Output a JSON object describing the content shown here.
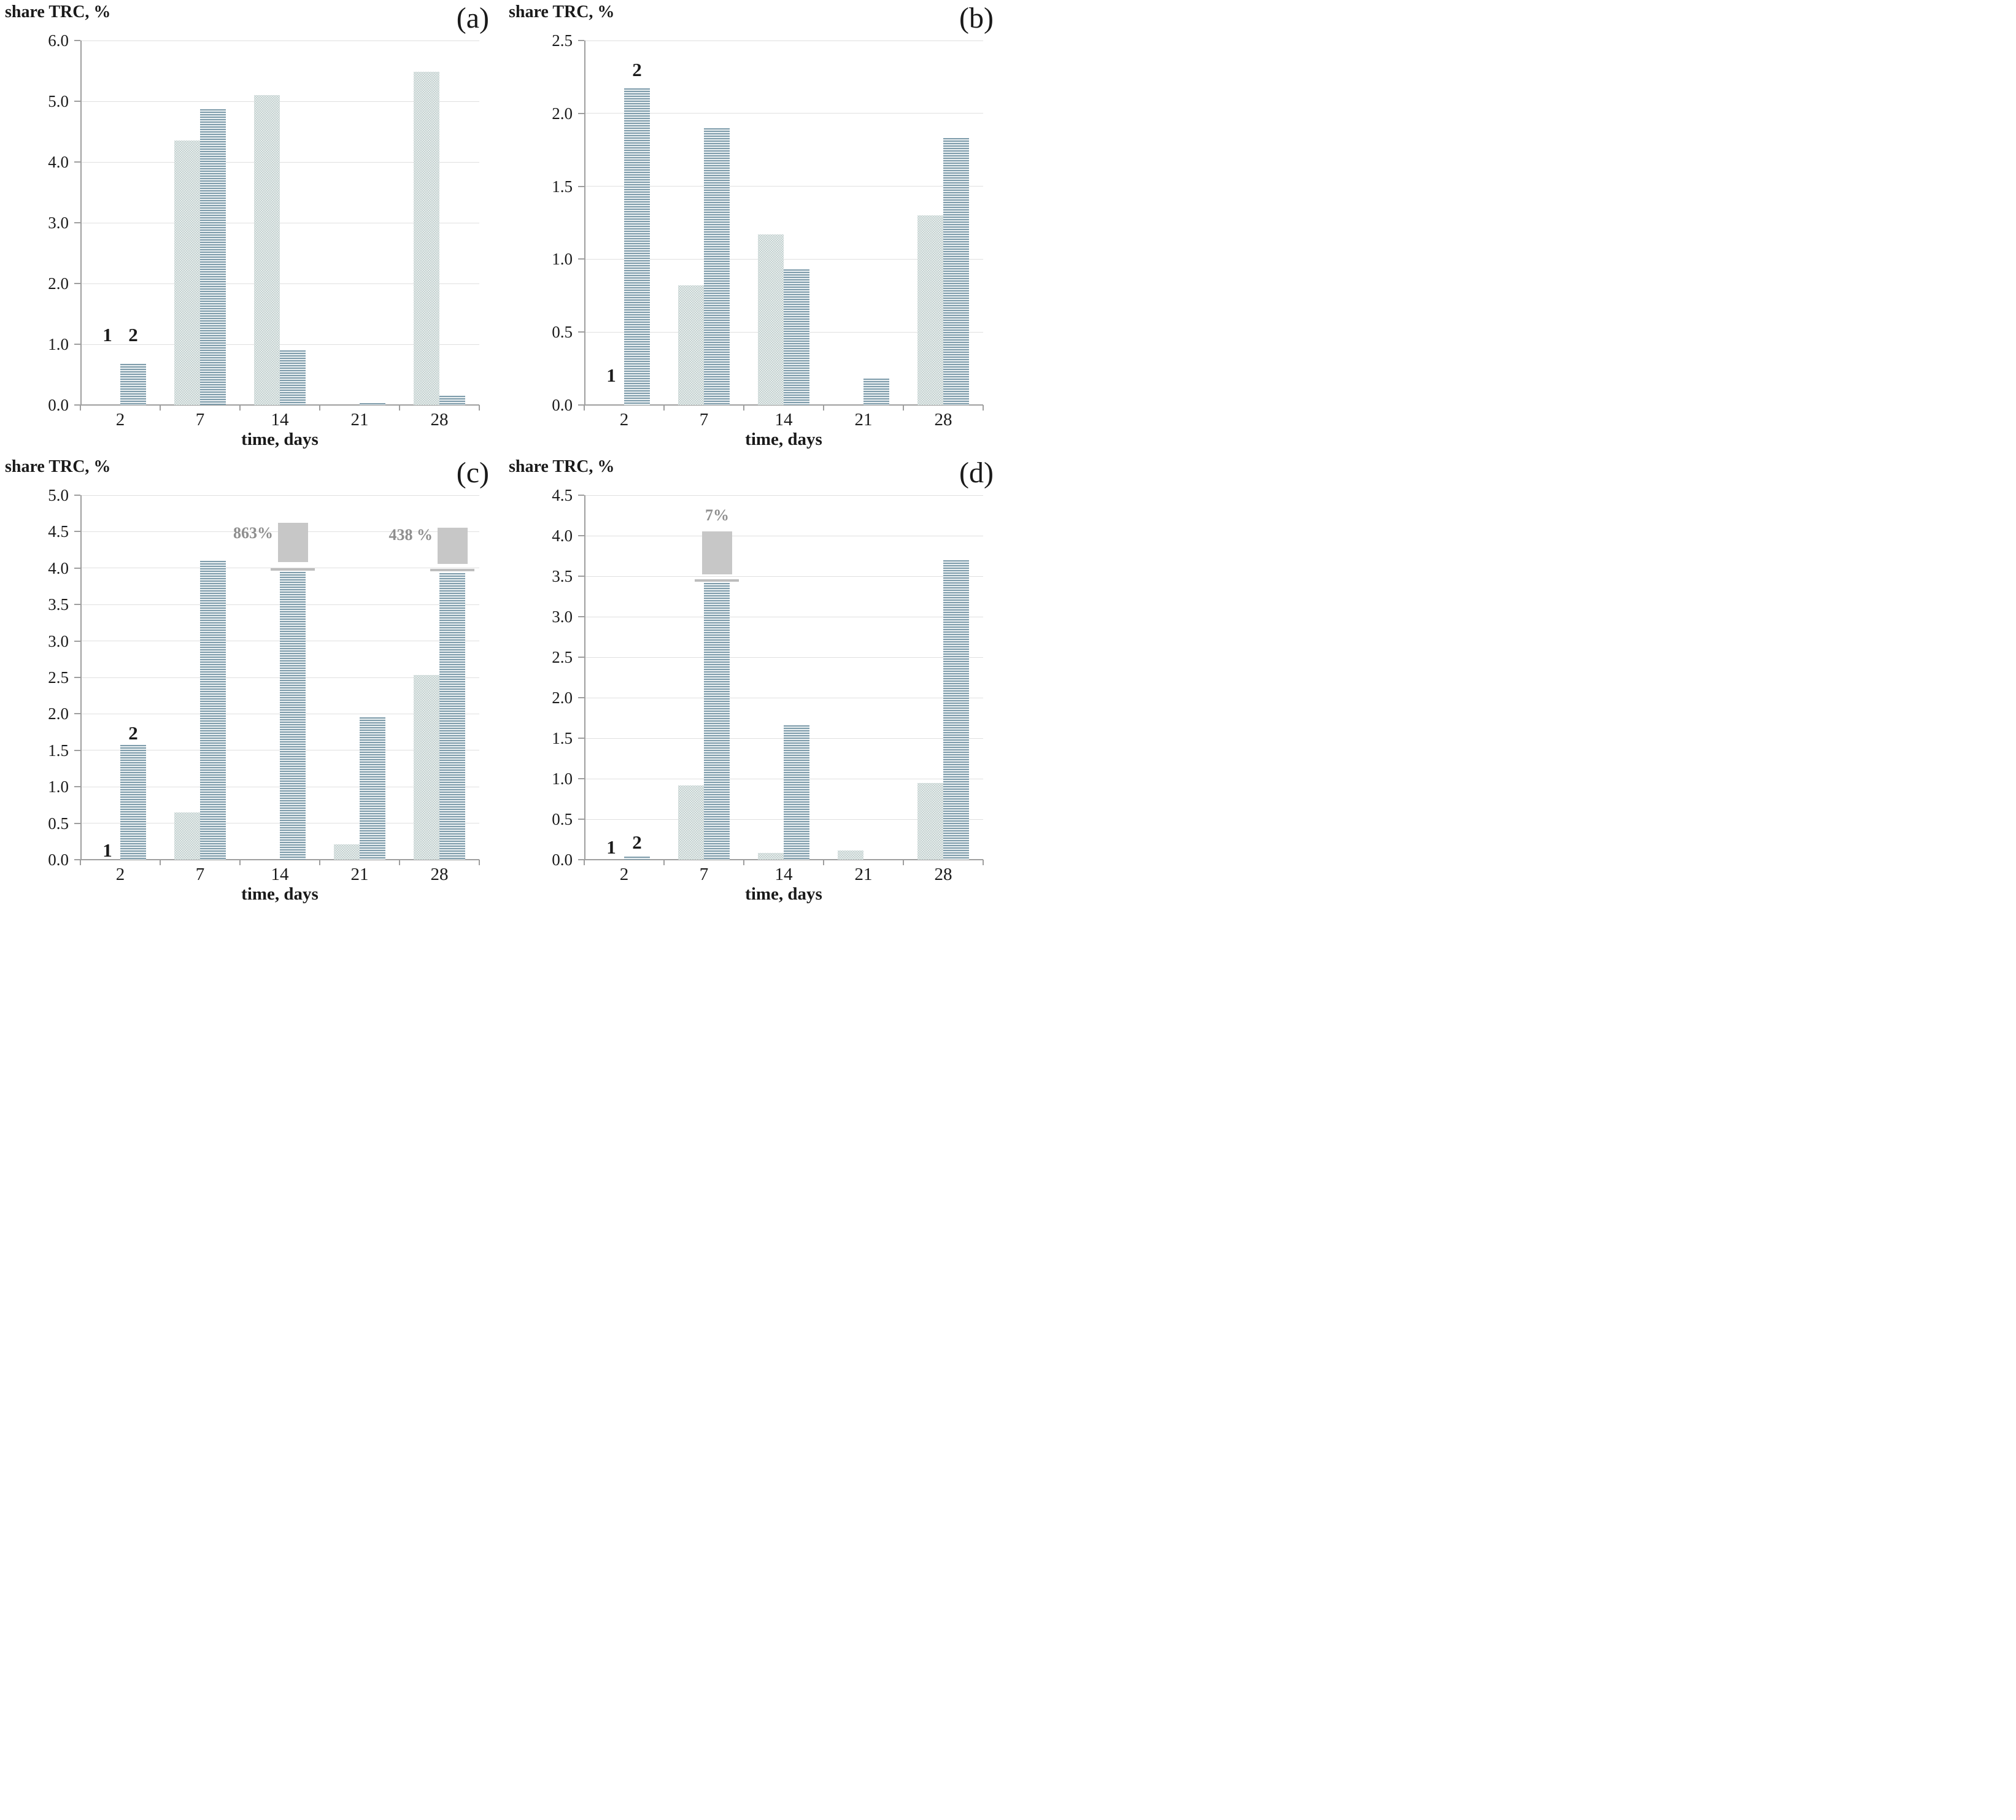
{
  "colors": {
    "stripe_dark": "#7e9cab",
    "stripe_light": "#eaf0f2",
    "dotted_bg": "#e8edeb",
    "dotted_dot": "#c2d1d1",
    "offscale_cap": "#c7c7c7",
    "offscale_text": "#8f8f8f",
    "gridline": "#e0e0e0",
    "axis": "#9e9e9e",
    "text": "#1a1a1a"
  },
  "chart_data": [
    {
      "panel_label": "(a)",
      "type": "bar",
      "ylabel": "share TRC, %",
      "xlabel": "time, days",
      "categories": [
        "2",
        "7",
        "14",
        "21",
        "28"
      ],
      "ylim": [
        0,
        6.0
      ],
      "ytick_labels": [
        "0.0",
        "1.0",
        "2.0",
        "3.0",
        "4.0",
        "5.0",
        "6.0"
      ],
      "grid": "horizontal",
      "legend": "none",
      "series": [
        {
          "name": "1",
          "pattern": "dotted",
          "values": [
            0,
            4.35,
            5.1,
            0,
            5.48
          ]
        },
        {
          "name": "2",
          "pattern": "striped",
          "values": [
            0.68,
            4.87,
            0.9,
            0.03,
            0.15
          ]
        }
      ],
      "bar_group_labels": [
        {
          "text": "1",
          "category_index": 0,
          "series_index": 0,
          "y": 1.15
        },
        {
          "text": "2",
          "category_index": 0,
          "series_index": 1,
          "y": 1.15
        }
      ],
      "offscale_annotations": []
    },
    {
      "panel_label": "(b)",
      "type": "bar",
      "ylabel": "share TRC, %",
      "xlabel": "time, days",
      "categories": [
        "2",
        "7",
        "14",
        "21",
        "28"
      ],
      "ylim": [
        0,
        2.5
      ],
      "ytick_labels": [
        "0.0",
        "0.5",
        "1.0",
        "1.5",
        "2.0",
        "2.5"
      ],
      "grid": "horizontal",
      "legend": "none",
      "series": [
        {
          "name": "1",
          "pattern": "dotted",
          "values": [
            0,
            0.82,
            1.17,
            0,
            1.3
          ]
        },
        {
          "name": "2",
          "pattern": "striped",
          "values": [
            2.17,
            1.9,
            0.93,
            0.18,
            1.83
          ]
        }
      ],
      "bar_group_labels": [
        {
          "text": "1",
          "category_index": 0,
          "series_index": 0,
          "y": 0.2
        },
        {
          "text": "2",
          "category_index": 0,
          "series_index": 1,
          "y": 2.3
        }
      ],
      "offscale_annotations": []
    },
    {
      "panel_label": "(c)",
      "type": "bar",
      "ylabel": "share TRC, %",
      "xlabel": "time, days",
      "categories": [
        "2",
        "7",
        "14",
        "21",
        "28"
      ],
      "ylim": [
        0,
        5.0
      ],
      "ytick_labels": [
        "0.0",
        "0.5",
        "1.0",
        "1.5",
        "2.0",
        "2.5",
        "3.0",
        "3.5",
        "4.0",
        "4.5",
        "5.0"
      ],
      "grid": "horizontal",
      "legend": "none",
      "series": [
        {
          "name": "1",
          "pattern": "dotted",
          "values": [
            0,
            0.65,
            0,
            0.21,
            2.53
          ]
        },
        {
          "name": "2",
          "pattern": "striped",
          "values": [
            1.57,
            4.1,
            3.95,
            1.95,
            3.93
          ]
        }
      ],
      "bar_group_labels": [
        {
          "text": "1",
          "category_index": 0,
          "series_index": 0,
          "y": 0.13
        },
        {
          "text": "2",
          "category_index": 0,
          "series_index": 1,
          "y": 1.73
        }
      ],
      "offscale_annotations": [
        {
          "label": "863%",
          "category_index": 2,
          "series_index": 1,
          "bar_drawn_top": 3.95,
          "break_y": 4.0,
          "cap_bottom": 4.08,
          "cap_top": 4.62,
          "label_side": "left",
          "label_y": 4.48
        },
        {
          "label": "438 %",
          "category_index": 4,
          "series_index": 1,
          "bar_drawn_top": 3.93,
          "break_y": 3.99,
          "cap_bottom": 4.06,
          "cap_top": 4.55,
          "label_side": "left",
          "label_y": 4.45
        }
      ]
    },
    {
      "panel_label": "(d)",
      "type": "bar",
      "ylabel": "share TRC, %",
      "xlabel": "time, days",
      "categories": [
        "2",
        "7",
        "14",
        "21",
        "28"
      ],
      "ylim": [
        0,
        4.5
      ],
      "ytick_labels": [
        "0.0",
        "0.5",
        "1.0",
        "1.5",
        "2.0",
        "2.5",
        "3.0",
        "3.5",
        "4.0",
        "4.5"
      ],
      "grid": "horizontal",
      "legend": "none",
      "series": [
        {
          "name": "1",
          "pattern": "dotted",
          "values": [
            0,
            0.92,
            0.08,
            0.11,
            0.95
          ]
        },
        {
          "name": "2",
          "pattern": "striped",
          "values": [
            0.04,
            3.42,
            1.66,
            0,
            3.7
          ]
        }
      ],
      "bar_group_labels": [
        {
          "text": "1",
          "category_index": 0,
          "series_index": 0,
          "y": 0.15
        },
        {
          "text": "2",
          "category_index": 0,
          "series_index": 1,
          "y": 0.21
        }
      ],
      "offscale_annotations": [
        {
          "label": "7%",
          "category_index": 1,
          "series_index": 1,
          "bar_drawn_top": 3.42,
          "break_y": 3.46,
          "cap_bottom": 3.52,
          "cap_top": 4.05,
          "label_side": "top",
          "label_y": 4.25
        }
      ]
    }
  ]
}
